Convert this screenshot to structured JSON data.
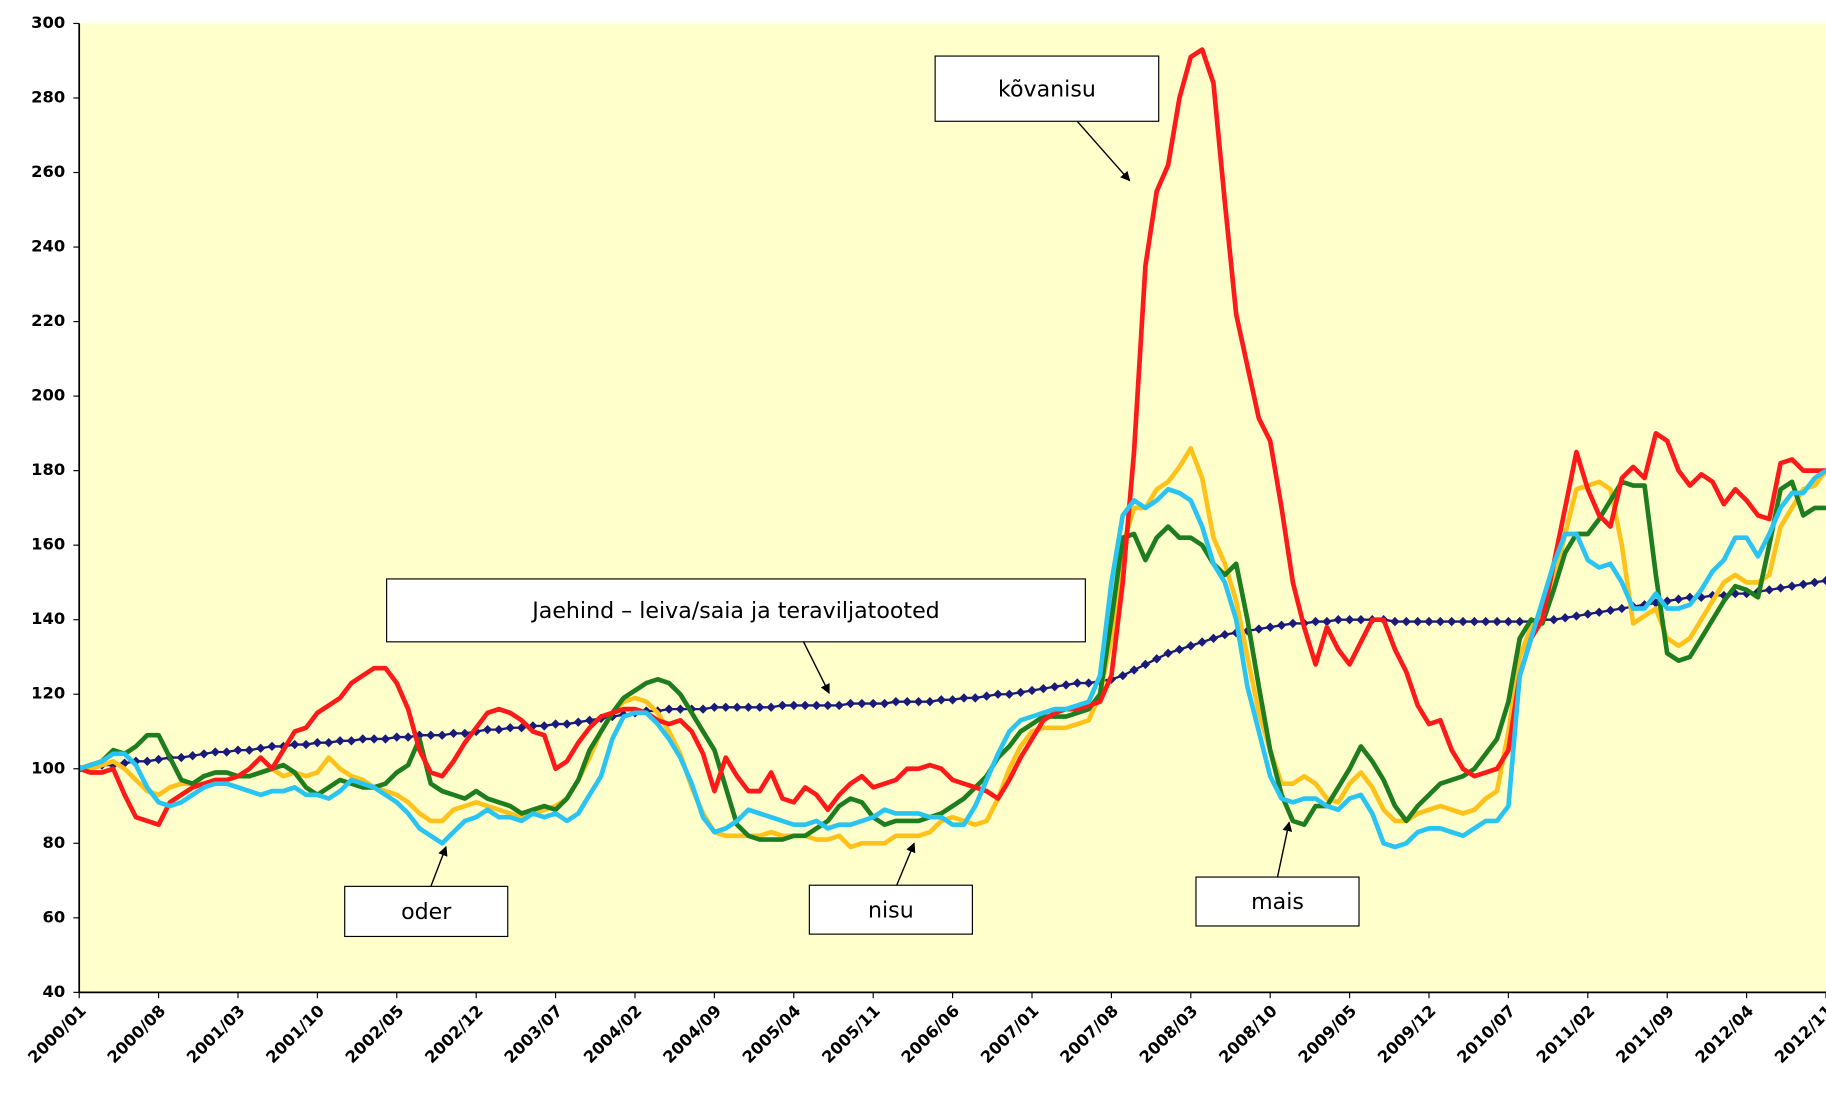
{
  "chart_data": {
    "type": "line",
    "categories": [
      "2000/01",
      null,
      null,
      null,
      null,
      null,
      null,
      "2000/08",
      null,
      null,
      null,
      null,
      null,
      null,
      "2001/03",
      null,
      null,
      null,
      null,
      null,
      null,
      "2001/10",
      null,
      null,
      null,
      null,
      null,
      null,
      "2002/05",
      null,
      null,
      null,
      null,
      null,
      null,
      "2002/12",
      null,
      null,
      null,
      null,
      null,
      null,
      "2003/07",
      null,
      null,
      null,
      null,
      null,
      null,
      "2004/02",
      null,
      null,
      null,
      null,
      null,
      null,
      "2004/09",
      null,
      null,
      null,
      null,
      null,
      null,
      "2005/04",
      null,
      null,
      null,
      null,
      null,
      null,
      "2005/11",
      null,
      null,
      null,
      null,
      null,
      null,
      "2006/06",
      null,
      null,
      null,
      null,
      null,
      null,
      "2007/01",
      null,
      null,
      null,
      null,
      null,
      null,
      "2007/08",
      null,
      null,
      null,
      null,
      null,
      null,
      "2008/03",
      null,
      null,
      null,
      null,
      null,
      null,
      "2008/10",
      null,
      null,
      null,
      null,
      null,
      null,
      "2009/05",
      null,
      null,
      null,
      null,
      null,
      null,
      "2009/12",
      null,
      null,
      null,
      null,
      null,
      null,
      "2010/07",
      null,
      null,
      null,
      null,
      null,
      null,
      "2011/02",
      null,
      null,
      null,
      null,
      null,
      null,
      "2011/09",
      null,
      null,
      null,
      null,
      null,
      null,
      "2012/04",
      null,
      null,
      null,
      null,
      null,
      null,
      "2012/11"
    ],
    "series": [
      {
        "name": "Jaehind – leiva/saia ja teraviljatooted",
        "color": "#1a1a7a",
        "markers": true,
        "values": [
          100,
          100.5,
          101,
          101,
          101.5,
          102,
          102,
          102.5,
          103,
          103,
          103.5,
          104,
          104.5,
          104.5,
          105,
          105,
          105.5,
          106,
          106,
          106.5,
          106.5,
          107,
          107,
          107.5,
          107.5,
          108,
          108,
          108,
          108.5,
          108.5,
          109,
          109,
          109,
          109.5,
          109.5,
          110,
          110.5,
          110.5,
          111,
          111,
          111.5,
          111.5,
          112,
          112,
          112.5,
          113,
          113.5,
          114,
          114.5,
          115,
          115.5,
          115.5,
          116,
          116,
          116,
          116,
          116.5,
          116.5,
          116.5,
          116.5,
          116.5,
          116.5,
          117,
          117,
          117,
          117,
          117,
          117,
          117.5,
          117.5,
          117.5,
          117.5,
          118,
          118,
          118,
          118,
          118.5,
          118.5,
          119,
          119,
          119.5,
          120,
          120,
          120.5,
          121,
          121.5,
          122,
          122.5,
          123,
          123,
          123.5,
          124,
          125,
          126.5,
          128,
          129.5,
          131,
          132,
          133,
          134,
          135,
          136,
          136.5,
          137,
          137.5,
          138,
          138.5,
          139,
          139,
          139.5,
          139.5,
          140,
          140,
          140,
          140,
          140,
          139.5,
          139.5,
          139.5,
          139.5,
          139.5,
          139.5,
          139.5,
          139.5,
          139.5,
          139.5,
          139.5,
          139.5,
          139.5,
          140,
          140,
          140.5,
          141,
          141.5,
          142,
          142.5,
          143,
          143.5,
          144,
          144.5,
          145,
          145.5,
          146,
          146,
          146.5,
          146.5,
          147,
          147,
          147.5,
          148,
          148.5,
          149,
          149.5,
          150,
          150.5
        ]
      },
      {
        "name": "kõvanisu",
        "color": "#ff1a1a",
        "values": [
          100,
          99,
          99,
          100,
          93,
          87,
          86,
          85,
          91,
          93,
          95,
          96,
          97,
          97,
          98,
          100,
          103,
          100,
          105,
          110,
          111,
          115,
          117,
          119,
          123,
          125,
          127,
          127,
          123,
          116,
          105,
          99,
          98,
          102,
          107,
          111,
          115,
          116,
          115,
          113,
          110,
          109,
          100,
          102,
          107,
          111,
          114,
          115,
          116,
          116,
          115,
          113,
          112,
          113,
          110,
          104,
          94,
          103,
          98,
          94,
          94,
          99,
          92,
          91,
          95,
          93,
          89,
          93,
          96,
          98,
          95,
          96,
          97,
          100,
          100,
          101,
          100,
          97,
          96,
          95,
          94,
          92,
          97,
          103,
          108,
          113,
          115,
          116,
          116,
          117,
          118,
          125,
          150,
          185,
          235,
          255,
          262,
          280,
          291,
          293,
          284,
          252,
          222,
          208,
          194,
          188,
          170,
          150,
          138,
          128,
          138,
          132,
          128,
          134,
          140,
          140,
          132,
          126,
          117,
          112,
          113,
          105,
          100,
          98,
          99,
          100,
          105,
          125,
          135,
          140,
          155,
          170,
          185,
          175,
          168,
          165,
          178,
          181,
          178,
          190,
          188,
          180,
          176,
          179,
          177,
          171,
          175,
          172,
          168,
          167,
          182,
          183,
          180,
          180,
          180
        ]
      },
      {
        "name": "nisu",
        "color": "#ffc21a",
        "values": [
          100,
          100,
          101,
          102,
          100,
          97,
          94,
          93,
          95,
          96,
          96,
          96,
          97,
          97,
          98,
          98,
          99,
          100,
          98,
          99,
          98,
          99,
          103,
          100,
          98,
          97,
          95,
          94,
          93,
          91,
          88,
          86,
          86,
          89,
          90,
          91,
          90,
          89,
          88,
          87,
          88,
          89,
          90,
          92,
          97,
          103,
          110,
          115,
          118,
          119,
          118,
          115,
          110,
          104,
          95,
          88,
          83,
          82,
          82,
          82,
          82,
          83,
          82,
          82,
          82,
          81,
          81,
          82,
          79,
          80,
          80,
          80,
          82,
          82,
          82,
          83,
          86,
          87,
          86,
          85,
          86,
          92,
          100,
          106,
          110,
          111,
          111,
          111,
          112,
          113,
          120,
          135,
          160,
          170,
          170,
          175,
          177,
          181,
          186,
          178,
          162,
          155,
          145,
          130,
          115,
          105,
          96,
          96,
          98,
          96,
          92,
          91,
          96,
          99,
          95,
          89,
          86,
          86,
          88,
          89,
          90,
          89,
          88,
          89,
          92,
          94,
          110,
          130,
          138,
          142,
          150,
          163,
          175,
          176,
          177,
          175,
          160,
          139,
          141,
          143,
          135,
          133,
          135,
          140,
          145,
          150,
          152,
          150,
          150,
          152,
          165,
          170,
          175,
          176,
          180
        ]
      },
      {
        "name": "oder",
        "color": "#1e7d1e",
        "values": [
          100,
          101,
          102,
          105,
          104,
          106,
          109,
          109,
          103,
          97,
          96,
          98,
          99,
          99,
          98,
          98,
          99,
          100,
          101,
          99,
          95,
          93,
          95,
          97,
          96,
          95,
          95,
          96,
          99,
          101,
          108,
          96,
          94,
          93,
          92,
          94,
          92,
          91,
          90,
          88,
          89,
          90,
          89,
          92,
          97,
          105,
          110,
          115,
          119,
          121,
          123,
          124,
          123,
          120,
          115,
          110,
          105,
          95,
          85,
          82,
          81,
          81,
          81,
          82,
          82,
          84,
          86,
          90,
          92,
          91,
          87,
          85,
          86,
          86,
          86,
          87,
          88,
          90,
          92,
          95,
          98,
          103,
          106,
          110,
          112,
          114,
          114,
          114,
          115,
          116,
          120,
          140,
          162,
          163,
          156,
          162,
          165,
          162,
          162,
          160,
          155,
          152,
          155,
          140,
          122,
          105,
          93,
          86,
          85,
          90,
          90,
          95,
          100,
          106,
          102,
          97,
          90,
          86,
          90,
          93,
          96,
          97,
          98,
          100,
          104,
          108,
          118,
          135,
          140,
          139,
          148,
          158,
          163,
          163,
          167,
          172,
          177,
          176,
          176,
          152,
          131,
          129,
          130,
          135,
          140,
          145,
          149,
          148,
          146,
          160,
          175,
          177,
          168,
          170,
          170
        ]
      },
      {
        "name": "mais",
        "color": "#29c4f2",
        "values": [
          100,
          101,
          102,
          104,
          104,
          101,
          95,
          91,
          90,
          91,
          93,
          95,
          96,
          96,
          95,
          94,
          93,
          94,
          94,
          95,
          93,
          93,
          92,
          94,
          97,
          96,
          95,
          93,
          91,
          88,
          84,
          82,
          80,
          83,
          86,
          87,
          89,
          87,
          87,
          86,
          88,
          87,
          88,
          86,
          88,
          93,
          98,
          108,
          114,
          115,
          115,
          112,
          108,
          103,
          96,
          87,
          83,
          84,
          86,
          89,
          88,
          87,
          86,
          85,
          85,
          86,
          84,
          85,
          85,
          86,
          87,
          89,
          88,
          88,
          88,
          87,
          87,
          85,
          85,
          90,
          97,
          104,
          110,
          113,
          114,
          115,
          116,
          116,
          117,
          118,
          125,
          150,
          168,
          172,
          170,
          172,
          175,
          174,
          172,
          165,
          155,
          150,
          140,
          122,
          110,
          98,
          92,
          91,
          92,
          92,
          90,
          89,
          92,
          93,
          88,
          80,
          79,
          80,
          83,
          84,
          84,
          83,
          82,
          84,
          86,
          86,
          90,
          125,
          135,
          145,
          155,
          163,
          163,
          156,
          154,
          155,
          150,
          143,
          143,
          147,
          143,
          143,
          144,
          148,
          153,
          156,
          162,
          162,
          157,
          163,
          170,
          174,
          174,
          178,
          180
        ]
      }
    ],
    "ylim": [
      40,
      300
    ],
    "yticks": [
      40,
      60,
      80,
      100,
      120,
      140,
      160,
      180,
      200,
      220,
      240,
      260,
      280,
      300
    ],
    "grid": true
  }
}
